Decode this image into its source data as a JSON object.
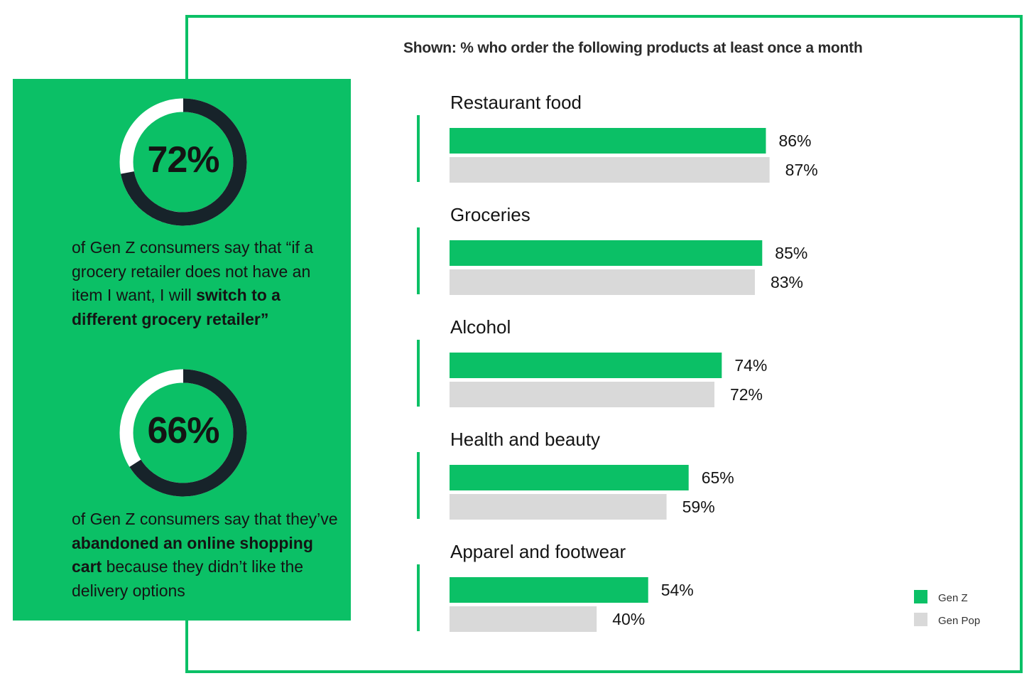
{
  "chart_data": {
    "type": "bar",
    "orientation": "horizontal",
    "subtitle": "Shown: % who order the following products at least once a month",
    "categories": [
      "Restaurant food",
      "Groceries",
      "Alcohol",
      "Health and beauty",
      "Apparel and footwear"
    ],
    "series": [
      {
        "name": "Gen Z",
        "values": [
          86,
          85,
          74,
          65,
          54
        ],
        "labels": [
          "86%",
          "85%",
          "74%",
          "65%",
          "54%"
        ],
        "color": "#0bc066"
      },
      {
        "name": "Gen Pop",
        "values": [
          87,
          83,
          72,
          59,
          40
        ],
        "labels": [
          "87%",
          "83%",
          "72%",
          "59%",
          "40%"
        ],
        "color": "#d9d9d9"
      }
    ],
    "xlim": [
      0,
      100
    ],
    "legend_position": "bottom-right",
    "grid": false
  },
  "sidebar": {
    "stats": [
      {
        "value": 72,
        "label": "72%",
        "text_parts": [
          {
            "text": "of Gen Z consumers say that “if a grocery retailer does not have an item I want, I will ",
            "bold": false
          },
          {
            "text": "switch to a different grocery retailer”",
            "bold": true
          }
        ]
      },
      {
        "value": 66,
        "label": "66%",
        "text_parts": [
          {
            "text": "of Gen Z consumers say that they’ve ",
            "bold": false
          },
          {
            "text": "abandoned an online shopping cart",
            "bold": true
          },
          {
            "text": " because they didn’t like the delivery options",
            "bold": false
          }
        ]
      }
    ]
  },
  "colors": {
    "accent": "#0bc066",
    "ring_dark": "#17232a",
    "ring_light": "#ffffff",
    "gen_pop": "#d9d9d9"
  }
}
